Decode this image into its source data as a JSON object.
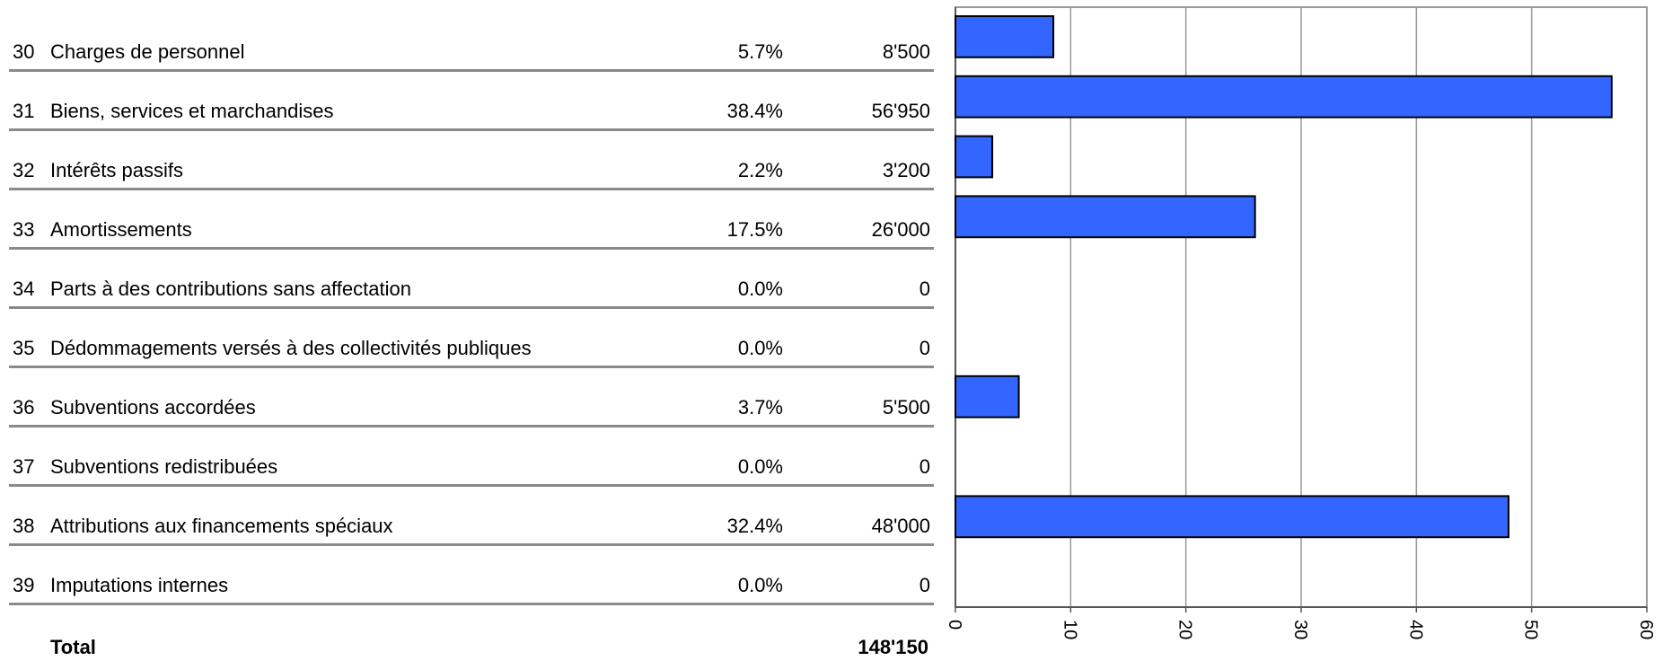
{
  "rows": [
    {
      "code": "30",
      "label": "Charges de personnel",
      "pct": "5.7%",
      "amount": "8'500"
    },
    {
      "code": "31",
      "label": "Biens, services et marchandises",
      "pct": "38.4%",
      "amount": "56'950"
    },
    {
      "code": "32",
      "label": "Intérêts passifs",
      "pct": "2.2%",
      "amount": "3'200"
    },
    {
      "code": "33",
      "label": "Amortissements",
      "pct": "17.5%",
      "amount": "26'000"
    },
    {
      "code": "34",
      "label": "Parts à des contributions sans affectation",
      "pct": "0.0%",
      "amount": "0"
    },
    {
      "code": "35",
      "label": "Dédommagements versés à des collectivités publiques",
      "pct": "0.0%",
      "amount": "0"
    },
    {
      "code": "36",
      "label": "Subventions accordées",
      "pct": "3.7%",
      "amount": "5'500"
    },
    {
      "code": "37",
      "label": "Subventions redistribuées",
      "pct": "0.0%",
      "amount": "0"
    },
    {
      "code": "38",
      "label": "Attributions aux financements spéciaux",
      "pct": "32.4%",
      "amount": "48'000"
    },
    {
      "code": "39",
      "label": "Imputations internes",
      "pct": "0.0%",
      "amount": "0"
    }
  ],
  "total": {
    "label": "Total",
    "amount": "148'150"
  },
  "colors": {
    "bar": "#3366ff",
    "bar_stroke": "#000000",
    "grid": "#9a9a9a",
    "row_line": "#8a8a8a"
  },
  "chart_data": {
    "type": "bar",
    "orientation": "horizontal",
    "categories": [
      "30",
      "31",
      "32",
      "33",
      "34",
      "35",
      "36",
      "37",
      "38",
      "39"
    ],
    "values": [
      8.5,
      56.95,
      3.2,
      26.0,
      0,
      0,
      5.5,
      0,
      48.0,
      0
    ],
    "xlim": [
      0,
      60
    ],
    "xticks": [
      "0",
      "10",
      "20",
      "30",
      "40",
      "50",
      "60"
    ],
    "grid": true,
    "title": "",
    "xlabel": "",
    "ylabel": ""
  }
}
